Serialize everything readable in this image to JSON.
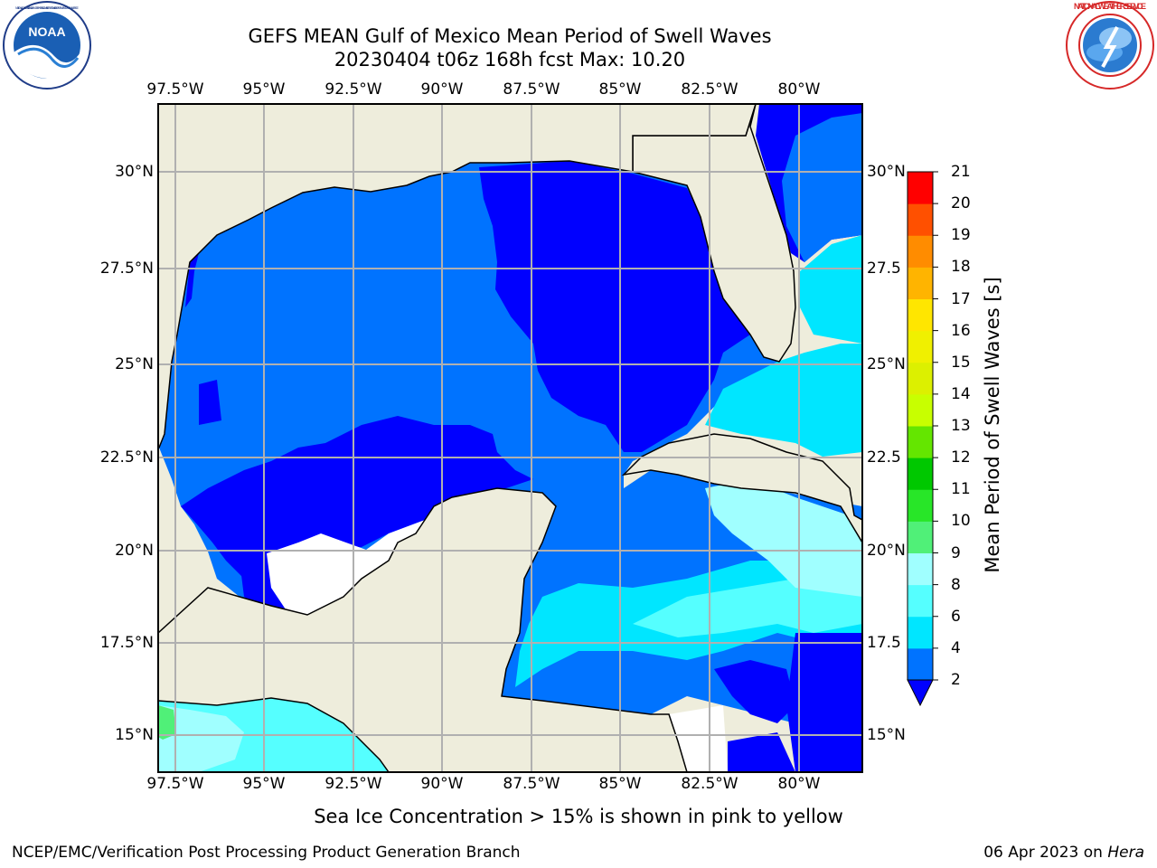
{
  "header": {
    "title_line1": "GEFS MEAN Gulf of Mexico Mean Period of Swell Waves",
    "title_line2": "20230404 t06z 168h fcst   Max: 10.20"
  },
  "logos": {
    "left": "NOAA",
    "left_ring_text": "NATIONAL OCEANIC AND ATMOSPHERIC ADMINISTRATION · U.S. DEPARTMENT OF COMMERCE",
    "right_ring_text": "NATIONAL WEATHER SERVICE"
  },
  "map": {
    "lon_labels": [
      "97.5°W",
      "95°W",
      "92.5°W",
      "90°W",
      "87.5°W",
      "85°W",
      "82.5°W",
      "80°W"
    ],
    "lat_labels_left": [
      "30°N",
      "27.5°N",
      "25°N",
      "22.5°N",
      "20°N",
      "17.5°N",
      "15°N"
    ],
    "lat_labels_right": [
      "30°N",
      "27.5",
      "25°N",
      "22.5",
      "20°N",
      "17.5",
      "15°N"
    ],
    "colors": {
      "land": "#eeeddc",
      "level_2_4": "#0073ff",
      "below_2": "#0000ff",
      "level_4_6": "#00e6ff",
      "level_6_8": "#55ffff",
      "level_8_9": "#a0ffff",
      "level_9_10": "#50f078",
      "no_data": "#ffffff"
    }
  },
  "colorbar": {
    "title": "Mean Period of Swell Waves [s]",
    "tick_labels": [
      "2",
      "4",
      "6",
      "8",
      "9",
      "10",
      "11",
      "12",
      "13",
      "14",
      "15",
      "16",
      "17",
      "18",
      "19",
      "20",
      "21"
    ],
    "colors": [
      "#0073ff",
      "#00e6ff",
      "#55ffff",
      "#a0ffff",
      "#50f078",
      "#28e628",
      "#00c800",
      "#64e600",
      "#c8ff00",
      "#dcf000",
      "#f0f000",
      "#ffe600",
      "#ffb400",
      "#ff8c00",
      "#ff5000",
      "#ff0000"
    ],
    "under_color": "#0000ff"
  },
  "footer": {
    "note": "Sea Ice Concentration > 15% is shown in pink to yellow",
    "credit": "NCEP/EMC/Verification Post Processing Product Generation Branch",
    "date": "06 Apr 2023 on",
    "host": "Hera"
  }
}
